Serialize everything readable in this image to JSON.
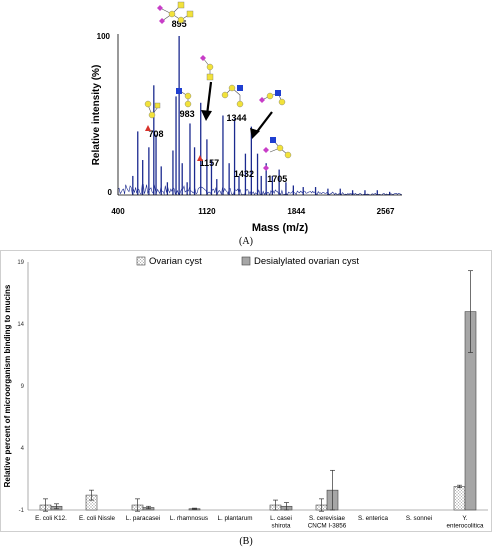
{
  "panel_a": {
    "label": "(A)",
    "ylabel": "Relative intensity (%)",
    "xlabel": "Mass (m/z)",
    "y_ticks": [
      "100",
      "0"
    ],
    "x_ticks": [
      "400",
      "1120",
      "1844",
      "2567"
    ]
  },
  "panel_b": {
    "label": "(B)",
    "ylabel": "Relative percent of microorganism binding to mucins",
    "legend": [
      "Ovarian cyst",
      "Desialylated ovarian cyst"
    ]
  },
  "chart_data": [
    {
      "type": "line",
      "title": "",
      "xlabel": "Mass (m/z)",
      "ylabel": "Relative intensity (%)",
      "xlim": [
        400,
        2700
      ],
      "ylim": [
        0,
        100
      ],
      "x_ticks": [
        400,
        1120,
        1844,
        2567
      ],
      "peak_labels": [
        {
          "mass": 708,
          "text": "708"
        },
        {
          "mass": 895,
          "text": "895"
        },
        {
          "mass": 983,
          "text": "983"
        },
        {
          "mass": 1157,
          "text": "1157"
        },
        {
          "mass": 1344,
          "text": "1344"
        },
        {
          "mass": 1432,
          "text": "1432"
        },
        {
          "mass": 1705,
          "text": "1705"
        }
      ],
      "series": [
        {
          "x": [
            520,
            560,
            600,
            650,
            690,
            708,
            750,
            800,
            845,
            870,
            895,
            920,
            960,
            983,
            1020,
            1070,
            1120,
            1157,
            1200,
            1250,
            1300,
            1344,
            1380,
            1432,
            1480,
            1530,
            1560,
            1600,
            1650,
            1705,
            1760,
            1820,
            1900,
            2000,
            2100,
            2200,
            2300,
            2400,
            2500,
            2600
          ],
          "values": [
            12,
            40,
            22,
            30,
            69,
            38,
            18,
            8,
            28,
            62,
            100,
            20,
            8,
            45,
            30,
            58,
            35,
            22,
            10,
            50,
            20,
            48,
            12,
            26,
            43,
            26,
            12,
            20,
            12,
            16,
            8,
            6,
            5,
            5,
            4,
            4,
            3,
            3,
            3,
            2
          ]
        }
      ]
    },
    {
      "type": "bar",
      "title": "",
      "xlabel": "",
      "ylabel": "Relative percent of microorganism binding to mucins",
      "ylim": [
        -1,
        19
      ],
      "y_ticks": [
        -1,
        4,
        9,
        14,
        19
      ],
      "categories": [
        "E. coli K12.",
        "E. coli Nissle",
        "L. paracasei",
        "L. rhamnosus",
        "L. plantarum",
        "L. casei shirota",
        "S. cerevisiae CNCM I-3856",
        "S. enterica",
        "S. sonnei",
        "Y. enterocolitica"
      ],
      "legend_position": "top",
      "series": [
        {
          "name": "Ovarian cyst",
          "values": [
            -0.6,
            0.2,
            -0.6,
            -1.0,
            -1.0,
            -0.6,
            -0.6,
            -1.0,
            -1.0,
            0.9
          ],
          "errors": [
            0.5,
            0.4,
            0.5,
            0.0,
            0.0,
            0.4,
            0.5,
            0.0,
            0.0,
            0.1
          ]
        },
        {
          "name": "Desialylated ovarian cyst",
          "values": [
            -0.7,
            -1.0,
            -0.8,
            -0.9,
            -1.0,
            -0.7,
            0.6,
            -1.0,
            -1.0,
            15.0
          ],
          "errors": [
            0.2,
            0.0,
            0.1,
            0.05,
            0.0,
            0.3,
            1.6,
            0.0,
            0.0,
            3.3
          ]
        }
      ]
    }
  ]
}
